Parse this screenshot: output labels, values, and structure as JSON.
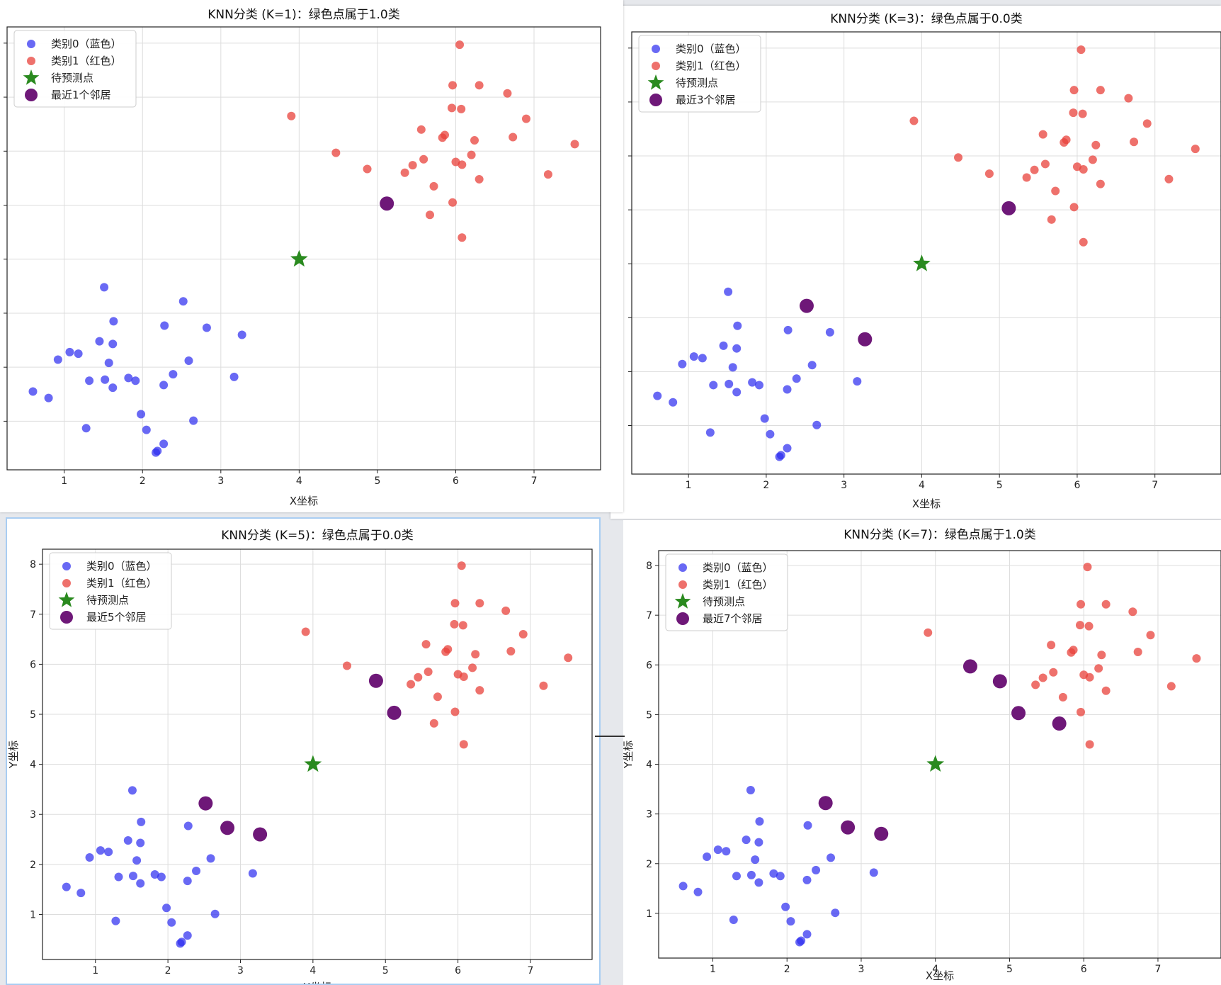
{
  "colors": {
    "class0": "#2f2ff0",
    "class1": "#e8413b",
    "target": "#2a8a1f",
    "neighbor": "#6e1878",
    "grid": "#dddddd",
    "axis": "#222222"
  },
  "legend": {
    "class0": "类别0（蓝色）",
    "class1": "类别1（红色）",
    "target": "待预测点"
  },
  "points": {
    "class0": [
      [
        0.6,
        1.55
      ],
      [
        0.8,
        1.43
      ],
      [
        0.92,
        2.14
      ],
      [
        1.07,
        2.28
      ],
      [
        1.18,
        2.25
      ],
      [
        1.28,
        0.87
      ],
      [
        1.32,
        1.75
      ],
      [
        1.45,
        2.48
      ],
      [
        1.51,
        3.48
      ],
      [
        1.52,
        1.77
      ],
      [
        1.57,
        2.08
      ],
      [
        1.62,
        1.62
      ],
      [
        1.62,
        2.43
      ],
      [
        1.63,
        2.85
      ],
      [
        1.82,
        1.8
      ],
      [
        1.91,
        1.75
      ],
      [
        1.98,
        1.13
      ],
      [
        2.05,
        0.84
      ],
      [
        2.17,
        0.42
      ],
      [
        2.19,
        0.45
      ],
      [
        2.27,
        0.58
      ],
      [
        2.27,
        1.67
      ],
      [
        2.28,
        2.77
      ],
      [
        2.39,
        1.87
      ],
      [
        2.59,
        2.12
      ],
      [
        2.65,
        1.01
      ],
      [
        3.17,
        1.82
      ],
      [
        2.52,
        3.22
      ],
      [
        2.82,
        2.73
      ],
      [
        3.27,
        2.6
      ]
    ],
    "class1": [
      [
        3.9,
        6.65
      ],
      [
        4.47,
        5.97
      ],
      [
        4.87,
        5.67
      ],
      [
        5.12,
        5.03
      ],
      [
        5.35,
        5.6
      ],
      [
        5.45,
        5.74
      ],
      [
        5.56,
        6.4
      ],
      [
        5.59,
        5.85
      ],
      [
        5.67,
        4.82
      ],
      [
        5.72,
        5.35
      ],
      [
        5.83,
        6.25
      ],
      [
        5.86,
        6.3
      ],
      [
        5.95,
        6.8
      ],
      [
        5.96,
        5.05
      ],
      [
        5.96,
        7.22
      ],
      [
        6.0,
        5.8
      ],
      [
        6.05,
        7.97
      ],
      [
        6.07,
        6.78
      ],
      [
        6.08,
        4.4
      ],
      [
        6.08,
        5.75
      ],
      [
        6.2,
        5.93
      ],
      [
        6.24,
        6.2
      ],
      [
        6.3,
        5.48
      ],
      [
        6.3,
        7.22
      ],
      [
        6.66,
        7.07
      ],
      [
        6.73,
        6.26
      ],
      [
        6.9,
        6.6
      ],
      [
        7.18,
        5.57
      ],
      [
        7.52,
        6.13
      ]
    ],
    "target": [
      4.0,
      4.0
    ]
  },
  "charts": [
    {
      "title": "KNN分类 (K=1)：绿色点属于1.0类",
      "neighbor_label": "最近1个邻居",
      "xlabel": "X坐标",
      "ylabel": "",
      "xticks": [
        1,
        2,
        3,
        4,
        5,
        6,
        7
      ],
      "yticks": [],
      "neighbors": [
        [
          5.12,
          5.03
        ]
      ]
    },
    {
      "title": "KNN分类 (K=3)：绿色点属于0.0类",
      "neighbor_label": "最近3个邻居",
      "xlabel": "X坐标",
      "ylabel": "",
      "xticks": [
        1,
        2,
        3,
        4,
        5,
        6,
        7
      ],
      "yticks": [],
      "neighbors": [
        [
          5.12,
          5.03
        ],
        [
          2.52,
          3.22
        ],
        [
          3.27,
          2.6
        ]
      ]
    },
    {
      "title": "KNN分类 (K=5)：绿色点属于0.0类",
      "neighbor_label": "最近5个邻居",
      "xlabel": "X坐标",
      "ylabel": "Y坐标",
      "xticks": [
        1,
        2,
        3,
        4,
        5,
        6,
        7
      ],
      "yticks": [
        1,
        2,
        3,
        4,
        5,
        6,
        7,
        8
      ],
      "neighbors": [
        [
          4.87,
          5.67
        ],
        [
          5.12,
          5.03
        ],
        [
          2.52,
          3.22
        ],
        [
          2.82,
          2.73
        ],
        [
          3.27,
          2.6
        ]
      ]
    },
    {
      "title": "KNN分类 (K=7)：绿色点属于1.0类",
      "neighbor_label": "最近7个邻居",
      "xlabel": "X坐标",
      "ylabel": "Y坐标",
      "xticks": [
        1,
        2,
        3,
        4,
        5,
        6,
        7
      ],
      "yticks": [
        1,
        2,
        3,
        4,
        5,
        6,
        7,
        8
      ],
      "neighbors": [
        [
          4.47,
          5.97
        ],
        [
          4.87,
          5.67
        ],
        [
          5.12,
          5.03
        ],
        [
          5.67,
          4.82
        ],
        [
          2.52,
          3.22
        ],
        [
          2.82,
          2.73
        ],
        [
          3.27,
          2.6
        ]
      ]
    }
  ],
  "chart_data": [
    {
      "type": "scatter",
      "title": "KNN分类 (K=1)：绿色点属于1.0类",
      "xlabel": "X坐标",
      "ylabel": "",
      "xlim": [
        0.27,
        7.85
      ],
      "ylim": [
        0.1,
        8.3
      ],
      "series": [
        {
          "name": "类别0（蓝色）",
          "ref": "points.class0"
        },
        {
          "name": "类别1（红色）",
          "ref": "points.class1"
        },
        {
          "name": "待预测点",
          "values": [
            [
              4.0,
              4.0
            ]
          ]
        },
        {
          "name": "最近1个邻居",
          "values": [
            [
              5.12,
              5.03
            ]
          ]
        }
      ],
      "legend": "top-left",
      "grid": true
    },
    {
      "type": "scatter",
      "title": "KNN分类 (K=3)：绿色点属于0.0类",
      "xlabel": "X坐标",
      "ylabel": "",
      "xlim": [
        0.27,
        7.85
      ],
      "ylim": [
        0.1,
        8.3
      ],
      "series": [
        {
          "name": "类别0（蓝色）",
          "ref": "points.class0"
        },
        {
          "name": "类别1（红色）",
          "ref": "points.class1"
        },
        {
          "name": "待预测点",
          "values": [
            [
              4.0,
              4.0
            ]
          ]
        },
        {
          "name": "最近3个邻居",
          "values": [
            [
              5.12,
              5.03
            ],
            [
              2.52,
              3.22
            ],
            [
              3.27,
              2.6
            ]
          ]
        }
      ],
      "legend": "top-left",
      "grid": true
    },
    {
      "type": "scatter",
      "title": "KNN分类 (K=5)：绿色点属于0.0类",
      "xlabel": "X坐标",
      "ylabel": "Y坐标",
      "xlim": [
        0.27,
        7.85
      ],
      "ylim": [
        0.1,
        8.3
      ],
      "series": [
        {
          "name": "类别0（蓝色）",
          "ref": "points.class0"
        },
        {
          "name": "类别1（红色）",
          "ref": "points.class1"
        },
        {
          "name": "待预测点",
          "values": [
            [
              4.0,
              4.0
            ]
          ]
        },
        {
          "name": "最近5个邻居",
          "values": [
            [
              4.87,
              5.67
            ],
            [
              5.12,
              5.03
            ],
            [
              2.52,
              3.22
            ],
            [
              2.82,
              2.73
            ],
            [
              3.27,
              2.6
            ]
          ]
        }
      ],
      "legend": "top-left",
      "grid": true
    },
    {
      "type": "scatter",
      "title": "KNN分类 (K=7)：绿色点属于1.0类",
      "xlabel": "X坐标",
      "ylabel": "Y坐标",
      "xlim": [
        0.27,
        7.85
      ],
      "ylim": [
        0.1,
        8.3
      ],
      "series": [
        {
          "name": "类别0（蓝色）",
          "ref": "points.class0"
        },
        {
          "name": "类别1（红色）",
          "ref": "points.class1"
        },
        {
          "name": "待预测点",
          "values": [
            [
              4.0,
              4.0
            ]
          ]
        },
        {
          "name": "最近7个邻居",
          "values": [
            [
              4.47,
              5.97
            ],
            [
              4.87,
              5.67
            ],
            [
              5.12,
              5.03
            ],
            [
              5.67,
              4.82
            ],
            [
              2.52,
              3.22
            ],
            [
              2.82,
              2.73
            ],
            [
              3.27,
              2.6
            ]
          ]
        }
      ],
      "legend": "top-left",
      "grid": true
    }
  ]
}
